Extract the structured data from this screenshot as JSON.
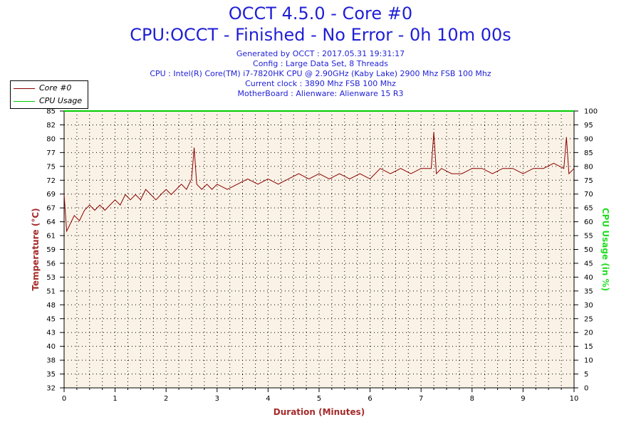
{
  "header": {
    "title_line1": "OCCT 4.5.0 - Core #0",
    "title_line2": "CPU:OCCT - Finished - No Error - 0h 10m 00s",
    "info": [
      "Generated by OCCT : 2017.05.31 19:31:17",
      "Config : Large Data Set, 8 Threads",
      "CPU : Intel(R) Core(TM) i7-7820HK CPU @ 2.90GHz (Kaby Lake) 2900 Mhz FSB 100 Mhz",
      "Current clock : 3890 Mhz FSB 100 Mhz",
      "MotherBoard : Alienware: Alienware 15 R3"
    ]
  },
  "legend": {
    "items": [
      {
        "label": "Core #0",
        "color": "#8b0000"
      },
      {
        "label": "CPU Usage",
        "color": "#00cc00"
      }
    ]
  },
  "chart_data": {
    "type": "line",
    "xlabel": "Duration (Minutes)",
    "ylabel_left": "Temperature (°C)",
    "ylabel_right": "CPU Usage (in %)",
    "xlim": [
      0,
      10
    ],
    "ylim_left": [
      32,
      85
    ],
    "ylim_right": [
      0,
      100
    ],
    "x_ticks": [
      "0",
      "1",
      "2",
      "3",
      "4",
      "5",
      "6",
      "7",
      "8",
      "9",
      "10"
    ],
    "y_left_ticks": [
      "32",
      "35",
      "38",
      "40",
      "43",
      "45",
      "48",
      "51",
      "53",
      "56",
      "59",
      "61",
      "64",
      "67",
      "69",
      "72",
      "75",
      "77",
      "80",
      "82",
      "85"
    ],
    "y_right_ticks": [
      "0",
      "5",
      "10",
      "15",
      "20",
      "25",
      "30",
      "35",
      "40",
      "45",
      "50",
      "55",
      "60",
      "65",
      "70",
      "75",
      "80",
      "85",
      "90",
      "95",
      "100"
    ],
    "grid": true,
    "legend_position": "top-left",
    "plot_background": "#faf2e6",
    "series": [
      {
        "name": "Core #0",
        "axis": "left",
        "color": "#8b0000",
        "x": [
          0,
          0.05,
          0.1,
          0.2,
          0.3,
          0.4,
          0.5,
          0.6,
          0.7,
          0.8,
          0.9,
          1.0,
          1.1,
          1.2,
          1.3,
          1.4,
          1.5,
          1.6,
          1.7,
          1.8,
          1.9,
          2.0,
          2.1,
          2.2,
          2.3,
          2.4,
          2.5,
          2.55,
          2.6,
          2.7,
          2.8,
          2.9,
          3.0,
          3.2,
          3.4,
          3.6,
          3.8,
          4.0,
          4.2,
          4.4,
          4.6,
          4.8,
          5.0,
          5.2,
          5.4,
          5.6,
          5.8,
          6.0,
          6.2,
          6.4,
          6.6,
          6.8,
          7.0,
          7.2,
          7.25,
          7.3,
          7.4,
          7.6,
          7.8,
          8.0,
          8.2,
          8.4,
          8.6,
          8.8,
          9.0,
          9.2,
          9.4,
          9.6,
          9.8,
          9.85,
          9.9,
          10.0
        ],
        "values": [
          69,
          62,
          63,
          65,
          64,
          66,
          67,
          66,
          67,
          66,
          67,
          68,
          67,
          69,
          68,
          69,
          68,
          70,
          69,
          68,
          69,
          70,
          69,
          70,
          71,
          70,
          72,
          78,
          71,
          70,
          71,
          70,
          71,
          70,
          71,
          72,
          71,
          72,
          71,
          72,
          73,
          72,
          73,
          72,
          73,
          72,
          73,
          72,
          74,
          73,
          74,
          73,
          74,
          74,
          81,
          73,
          74,
          73,
          73,
          74,
          74,
          73,
          74,
          74,
          73,
          74,
          74,
          75,
          74,
          80,
          73,
          74
        ]
      },
      {
        "name": "CPU Usage",
        "axis": "right",
        "color": "#00cc00",
        "x": [
          0,
          10
        ],
        "values": [
          100,
          100
        ]
      }
    ]
  }
}
